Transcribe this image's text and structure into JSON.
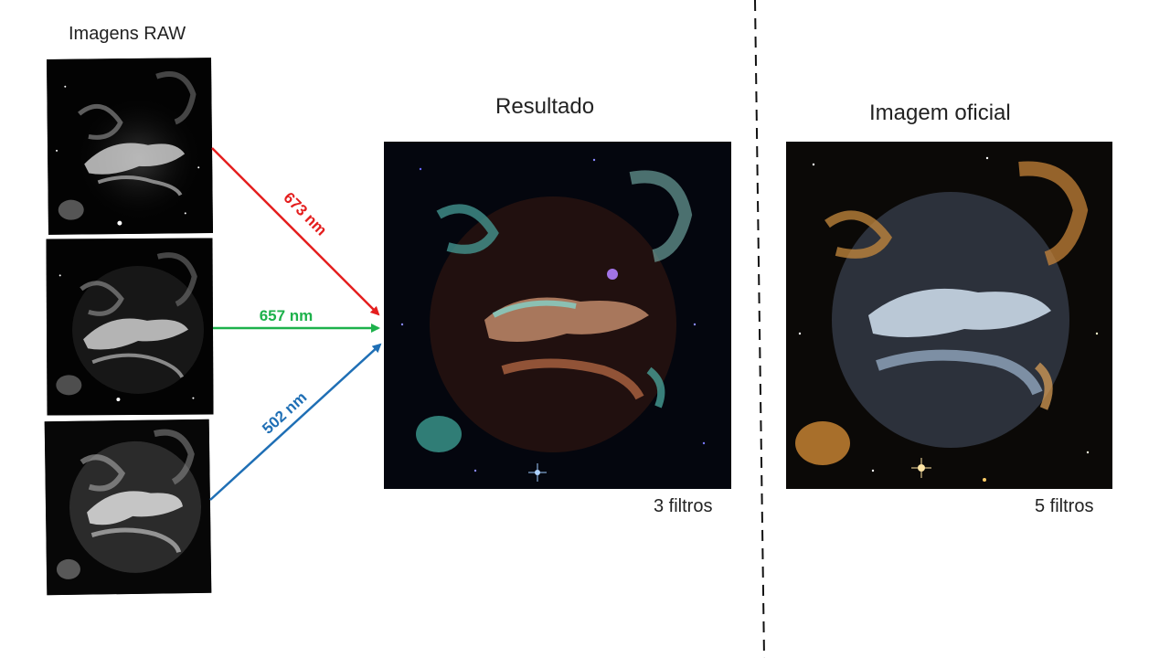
{
  "labels": {
    "raw_title": "Imagens RAW",
    "result_title": "Resultado",
    "official_title": "Imagem oficial",
    "result_caption": "3 filtros",
    "official_caption": "5 filtros"
  },
  "filters": [
    {
      "label": "673 nm",
      "color": "#e41e1e"
    },
    {
      "label": "657 nm",
      "color": "#1db14b"
    },
    {
      "label": "502 nm",
      "color": "#1f6fb5"
    }
  ],
  "colors": {
    "divider": "#111111",
    "text": "#222222"
  }
}
